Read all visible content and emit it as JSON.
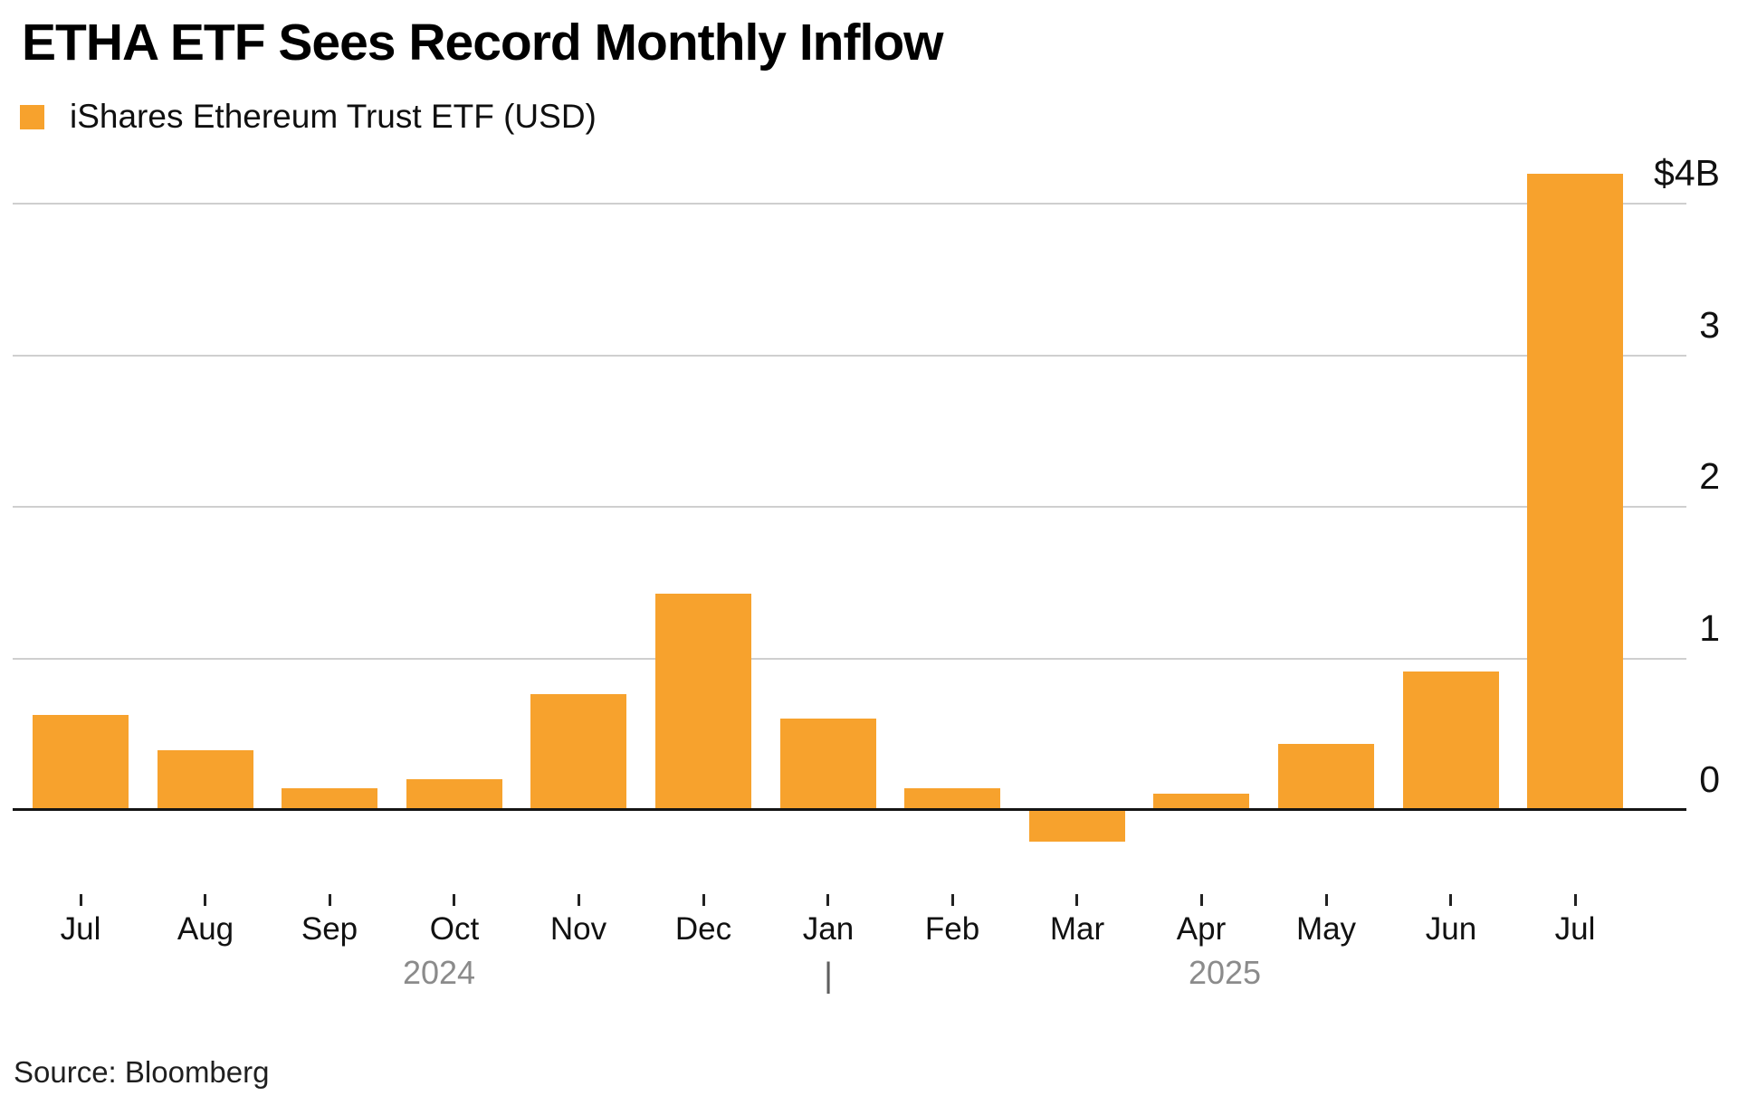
{
  "header": {
    "title": "ETHA ETF Sees Record Monthly Inflow",
    "legend": {
      "label": "iShares Ethereum Trust ETF (USD)"
    }
  },
  "footer": {
    "source": "Source: Bloomberg"
  },
  "colors": {
    "bar": "#F7A22D",
    "gridline": "#CFCFCF",
    "baseline": "#141414",
    "axis_text": "#111111",
    "year_text": "#8B8B8B",
    "background": "#FFFFFF"
  },
  "chart_data": {
    "type": "bar",
    "title": "ETHA ETF Sees Record Monthly Inflow",
    "series_name": "iShares Ethereum Trust ETF (USD)",
    "unit": "USD billions",
    "categories": [
      "Jul",
      "Aug",
      "Sep",
      "Oct",
      "Nov",
      "Dec",
      "Jan",
      "Feb",
      "Mar",
      "Apr",
      "May",
      "Jun",
      "Jul"
    ],
    "values": [
      0.62,
      0.39,
      0.14,
      0.2,
      0.76,
      1.42,
      0.6,
      0.14,
      -0.2,
      0.1,
      0.43,
      0.91,
      4.19
    ],
    "x_axis": {
      "year_labels": [
        "2024",
        "2025"
      ],
      "year_divider": "|",
      "year_divider_month": "Jan"
    },
    "y_axis": {
      "ticks": [
        {
          "value": 4,
          "label": "$4B"
        },
        {
          "value": 3,
          "label": "3"
        },
        {
          "value": 2,
          "label": "2"
        },
        {
          "value": 1,
          "label": "1"
        },
        {
          "value": 0,
          "label": "0"
        }
      ],
      "ylim": [
        -0.45,
        4.4
      ]
    },
    "grid": "horizontal",
    "legend_position": "top-left",
    "xlabel": "",
    "ylabel": ""
  }
}
